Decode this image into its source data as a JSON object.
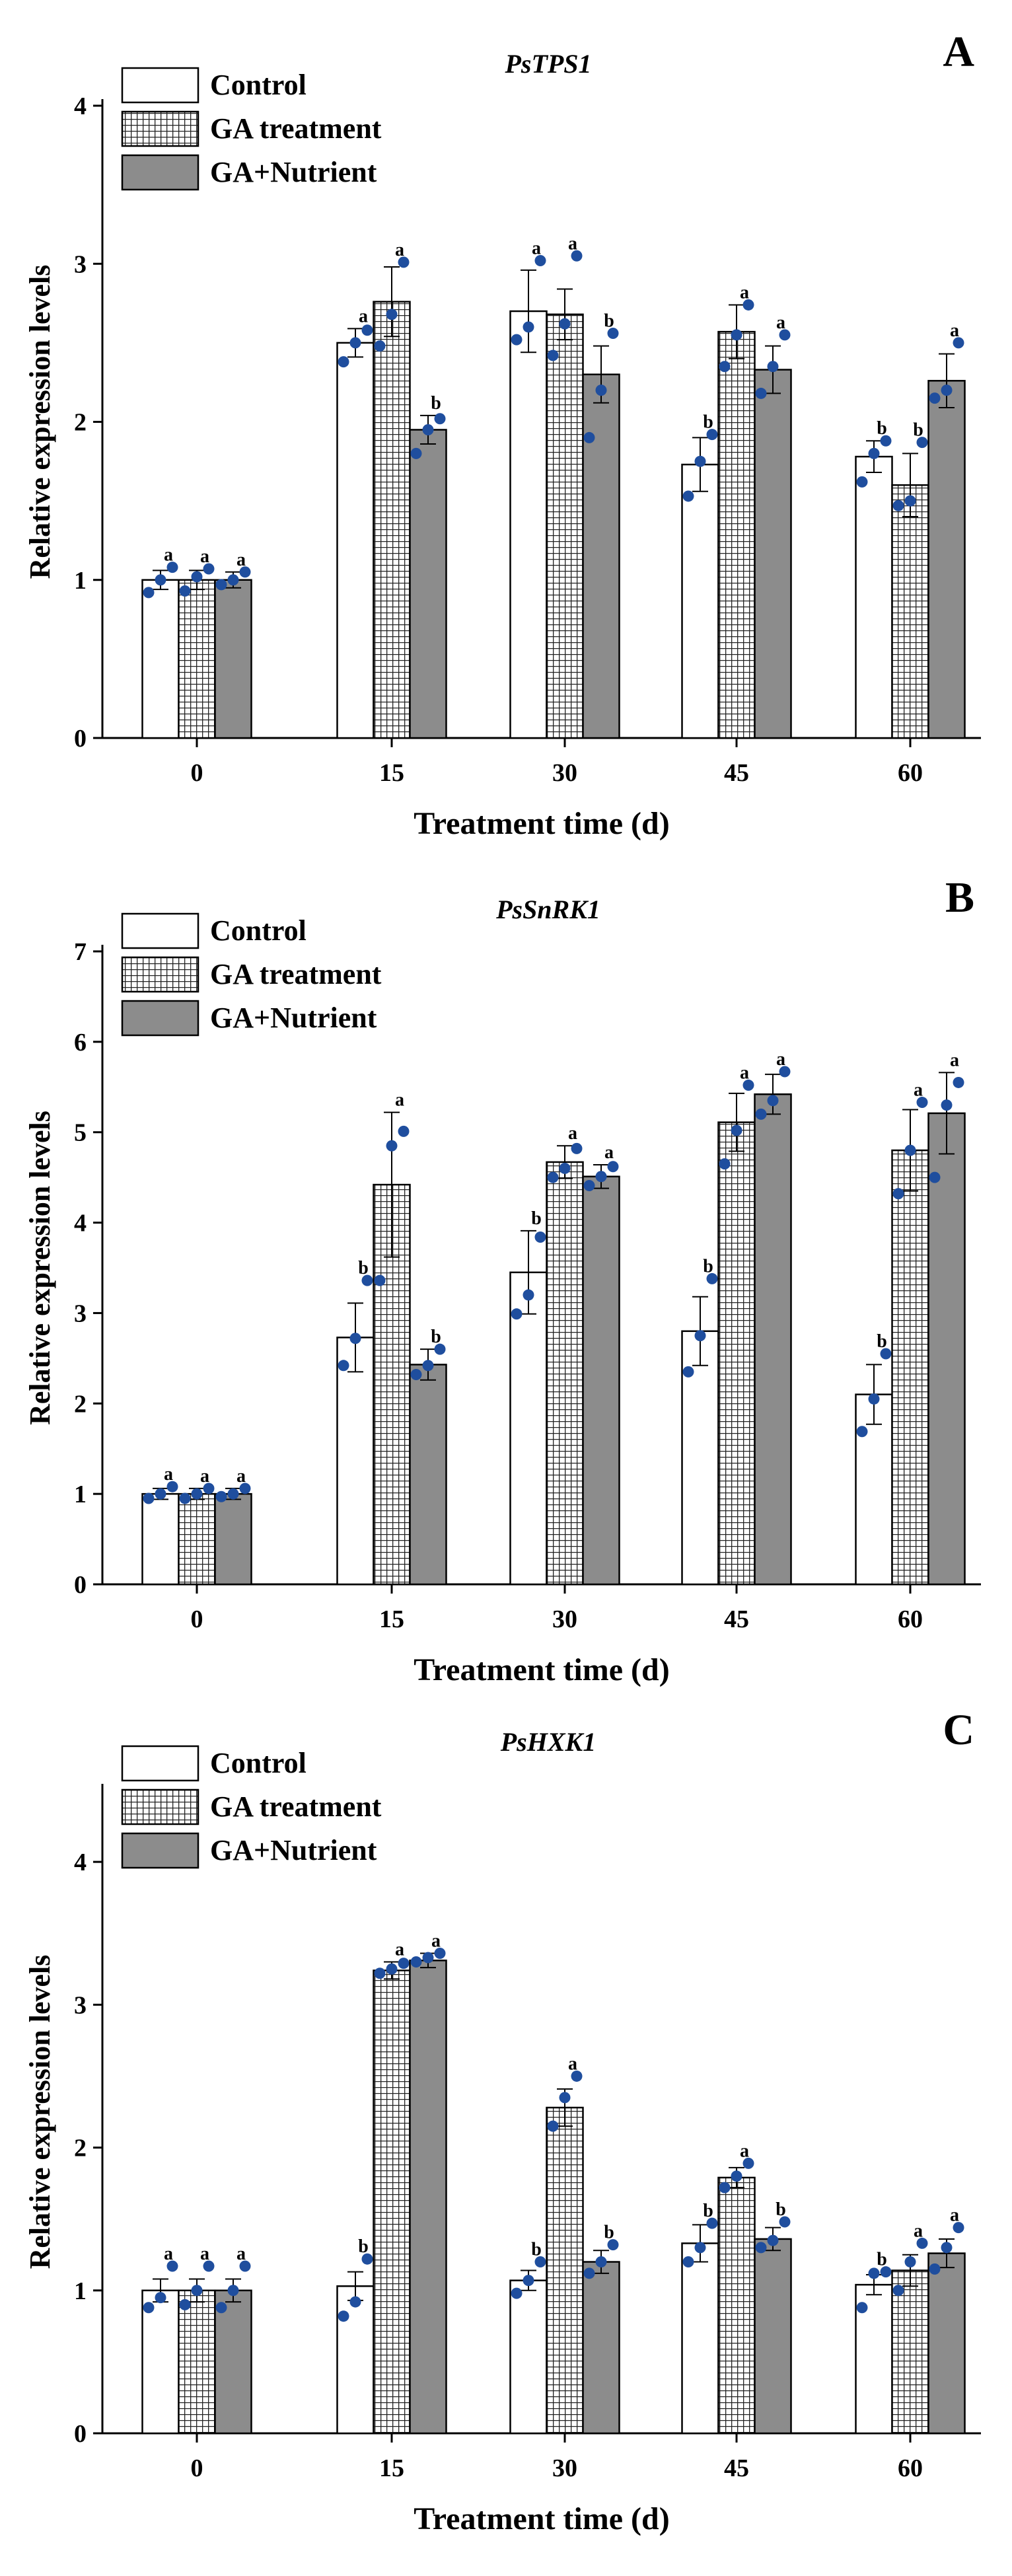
{
  "colors": {
    "control_fill": "#ffffff",
    "ga_fill": "#ffffff",
    "ga_hatch": "#222222",
    "nutrient_fill": "#8c8c8c",
    "dot": "#1f4e9e",
    "axis": "#000000"
  },
  "legend": [
    "Control",
    "GA treatment",
    "GA+Nutrient"
  ],
  "chart_data": [
    {
      "type": "bar",
      "panel_letter": "A",
      "title": "PsTPS1",
      "xlabel": "Treatment time (d)",
      "ylabel": "Relative expression levels",
      "categories": [
        "0",
        "15",
        "30",
        "45",
        "60"
      ],
      "ylim": [
        0,
        4
      ],
      "yticks": [
        "0",
        "1",
        "2",
        "3",
        "4"
      ],
      "series": [
        {
          "name": "Control",
          "values": [
            1.0,
            2.5,
            2.7,
            1.73,
            1.78
          ],
          "errors": [
            0.06,
            0.09,
            0.26,
            0.17,
            0.1
          ],
          "letters": [
            "a",
            "a",
            "a",
            "b",
            "b"
          ],
          "points": [
            [
              0.92,
              1.0,
              1.08
            ],
            [
              2.38,
              2.5,
              2.58
            ],
            [
              2.52,
              2.6,
              3.02
            ],
            [
              1.53,
              1.75,
              1.92
            ],
            [
              1.62,
              1.8,
              1.88
            ]
          ]
        },
        {
          "name": "GA treatment",
          "values": [
            1.0,
            2.76,
            2.68,
            2.57,
            1.6
          ],
          "errors": [
            0.06,
            0.22,
            0.16,
            0.17,
            0.2
          ],
          "letters": [
            "a",
            "a",
            "a",
            "a",
            "b"
          ],
          "points": [
            [
              0.93,
              1.02,
              1.07
            ],
            [
              2.48,
              2.68,
              3.01
            ],
            [
              2.42,
              2.62,
              3.05
            ],
            [
              2.35,
              2.55,
              2.74
            ],
            [
              1.47,
              1.5,
              1.87
            ]
          ]
        },
        {
          "name": "GA+Nutrient",
          "values": [
            1.0,
            1.95,
            2.3,
            2.33,
            2.26
          ],
          "errors": [
            0.05,
            0.09,
            0.18,
            0.15,
            0.17
          ],
          "letters": [
            "a",
            "b",
            "b",
            "a",
            "a"
          ],
          "points": [
            [
              0.97,
              1.0,
              1.05
            ],
            [
              1.8,
              1.95,
              2.02
            ],
            [
              1.9,
              2.2,
              2.56
            ],
            [
              2.18,
              2.35,
              2.55
            ],
            [
              2.15,
              2.2,
              2.5
            ]
          ]
        }
      ]
    },
    {
      "type": "bar",
      "panel_letter": "B",
      "title": "PsSnRK1",
      "xlabel": "Treatment time (d)",
      "ylabel": "Relative expression levels",
      "categories": [
        "0",
        "15",
        "30",
        "45",
        "60"
      ],
      "ylim": [
        0,
        7
      ],
      "yticks": [
        "0",
        "1",
        "2",
        "3",
        "4",
        "5",
        "6",
        "7"
      ],
      "series": [
        {
          "name": "Control",
          "values": [
            1.0,
            2.73,
            3.45,
            2.8,
            2.1
          ],
          "errors": [
            0.06,
            0.38,
            0.46,
            0.38,
            0.33
          ],
          "letters": [
            "a",
            "b",
            "b",
            "b",
            "b"
          ],
          "points": [
            [
              0.95,
              1.0,
              1.08
            ],
            [
              2.42,
              2.72,
              3.36
            ],
            [
              2.99,
              3.2,
              3.84
            ],
            [
              2.35,
              2.75,
              3.38
            ],
            [
              1.69,
              2.05,
              2.55
            ]
          ]
        },
        {
          "name": "GA treatment",
          "values": [
            1.0,
            4.42,
            4.67,
            5.11,
            4.8
          ],
          "errors": [
            0.06,
            0.8,
            0.18,
            0.32,
            0.45
          ],
          "letters": [
            "a",
            "a",
            "a",
            "a",
            "a"
          ],
          "points": [
            [
              0.95,
              1.0,
              1.06
            ],
            [
              3.36,
              4.85,
              5.01
            ],
            [
              4.5,
              4.6,
              4.82
            ],
            [
              4.65,
              5.02,
              5.52
            ],
            [
              4.32,
              4.8,
              5.33
            ]
          ]
        },
        {
          "name": "GA+Nutrient",
          "values": [
            1.0,
            2.43,
            4.51,
            5.42,
            5.21
          ],
          "errors": [
            0.06,
            0.17,
            0.13,
            0.22,
            0.45
          ],
          "letters": [
            "a",
            "b",
            "a",
            "a",
            "a"
          ],
          "points": [
            [
              0.97,
              1.0,
              1.06
            ],
            [
              2.32,
              2.42,
              2.6
            ],
            [
              4.41,
              4.51,
              4.62
            ],
            [
              5.2,
              5.35,
              5.67
            ],
            [
              4.5,
              5.3,
              5.55
            ]
          ]
        }
      ]
    },
    {
      "type": "bar",
      "panel_letter": "C",
      "title": "PsHXK1",
      "xlabel": "Treatment time (d)",
      "ylabel": "Relative expression levels",
      "categories": [
        "0",
        "15",
        "30",
        "45",
        "60"
      ],
      "ylim": [
        0,
        4.5
      ],
      "yticks": [
        "0",
        "1",
        "2",
        "3",
        "4"
      ],
      "series": [
        {
          "name": "Control",
          "values": [
            1.0,
            1.03,
            1.07,
            1.33,
            1.04
          ],
          "errors": [
            0.08,
            0.1,
            0.07,
            0.13,
            0.07
          ],
          "letters": [
            "a",
            "b",
            "b",
            "b",
            "b"
          ],
          "points": [
            [
              0.88,
              0.95,
              1.17
            ],
            [
              0.82,
              0.92,
              1.22
            ],
            [
              0.98,
              1.07,
              1.2
            ],
            [
              1.2,
              1.3,
              1.47
            ],
            [
              0.88,
              1.12,
              1.13
            ]
          ]
        },
        {
          "name": "GA treatment",
          "values": [
            1.0,
            3.24,
            2.28,
            1.79,
            1.14
          ],
          "errors": [
            0.08,
            0.06,
            0.13,
            0.07,
            0.11
          ],
          "letters": [
            "a",
            "a",
            "a",
            "a",
            "a"
          ],
          "points": [
            [
              0.9,
              1.0,
              1.17
            ],
            [
              3.22,
              3.25,
              3.29
            ],
            [
              2.15,
              2.35,
              2.5
            ],
            [
              1.72,
              1.8,
              1.89
            ],
            [
              1.0,
              1.2,
              1.33
            ]
          ]
        },
        {
          "name": "GA+Nutrient",
          "values": [
            1.0,
            3.31,
            1.2,
            1.36,
            1.26
          ],
          "errors": [
            0.08,
            0.05,
            0.08,
            0.08,
            0.1
          ],
          "letters": [
            "a",
            "a",
            "b",
            "b",
            "a"
          ],
          "points": [
            [
              0.88,
              1.0,
              1.17
            ],
            [
              3.3,
              3.33,
              3.36
            ],
            [
              1.12,
              1.2,
              1.32
            ],
            [
              1.3,
              1.35,
              1.48
            ],
            [
              1.15,
              1.3,
              1.44
            ]
          ]
        }
      ]
    }
  ]
}
